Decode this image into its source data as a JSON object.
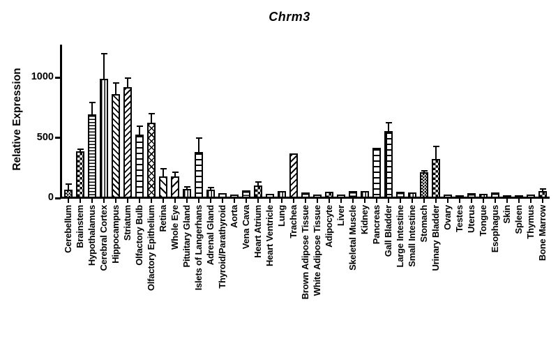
{
  "figure": {
    "background": "#ffffff",
    "ink_color": "#000000"
  },
  "chart_data": {
    "type": "bar",
    "title": "Chrm3",
    "ylabel": "Relative Expression",
    "xlabel": "",
    "ylim": [
      0,
      1270
    ],
    "yticks": [
      0,
      500,
      1000
    ],
    "grid": false,
    "legend": "none",
    "bar_fill": "#ffffff",
    "bar_outline": "#000000",
    "error_bars": "upper SEM caps",
    "categories": [
      "Cerebellum",
      "Brainstem",
      "Hypothalamus",
      "Cerebral Cortex",
      "Hippocampus",
      "Striatum",
      "Olfactory Bulb",
      "Olfactory Epithelium",
      "Retina",
      "Whole Eye",
      "Pituitary Gland",
      "Islets of Langerhans",
      "Adrenal Gland",
      "Thyroid/Parathyroid",
      "Aorta",
      "Vena Cava",
      "Heart Atrium",
      "Heart Ventricle",
      "Lung",
      "Trachea",
      "Brown Adipose Tissue",
      "White Adipose Tissue",
      "Adipocyte",
      "Liver",
      "Skeletal Muscle",
      "Kidney",
      "Pancreas",
      "Gall Bladder",
      "Large Intestine",
      "Small Intestine",
      "Stomach",
      "Urinary Bladder",
      "Ovary",
      "Testes",
      "Uterus",
      "Tongue",
      "Esophagus",
      "Skin",
      "Spleen",
      "Thymus",
      "Bone Marrow"
    ],
    "values": [
      55,
      375,
      680,
      975,
      850,
      905,
      515,
      615,
      170,
      165,
      65,
      370,
      60,
      30,
      18,
      50,
      90,
      25,
      45,
      360,
      35,
      20,
      40,
      20,
      45,
      45,
      405,
      545,
      40,
      35,
      200,
      310,
      15,
      10,
      28,
      25,
      32,
      10,
      8,
      15,
      45
    ],
    "errors": [
      50,
      20,
      100,
      210,
      95,
      80,
      70,
      70,
      60,
      40,
      15,
      115,
      15,
      8,
      5,
      10,
      30,
      6,
      10,
      0,
      8,
      5,
      12,
      5,
      12,
      10,
      0,
      65,
      10,
      8,
      15,
      105,
      4,
      3,
      6,
      6,
      6,
      3,
      3,
      4,
      20
    ],
    "patterns": [
      "checker-fine",
      "checkerboard",
      "hlines",
      "vlines",
      "diag-down",
      "diag-up",
      "ladder",
      "crosshatch",
      "diag-down-wide",
      "diag-up-wide",
      "vlines",
      "ladder",
      "vlines",
      "solid",
      "solid",
      "hlines",
      "checkerboard",
      "solid",
      "vlines",
      "diag-up",
      "hlines",
      "solid",
      "checkerboard",
      "solid",
      "hlines",
      "vlines",
      "ladder",
      "grid",
      "hlines",
      "vlines",
      "checker-fine",
      "checkerboard",
      "solid",
      "solid",
      "hlines",
      "vlines",
      "hlines",
      "solid",
      "solid",
      "solid",
      "checkerboard"
    ]
  }
}
